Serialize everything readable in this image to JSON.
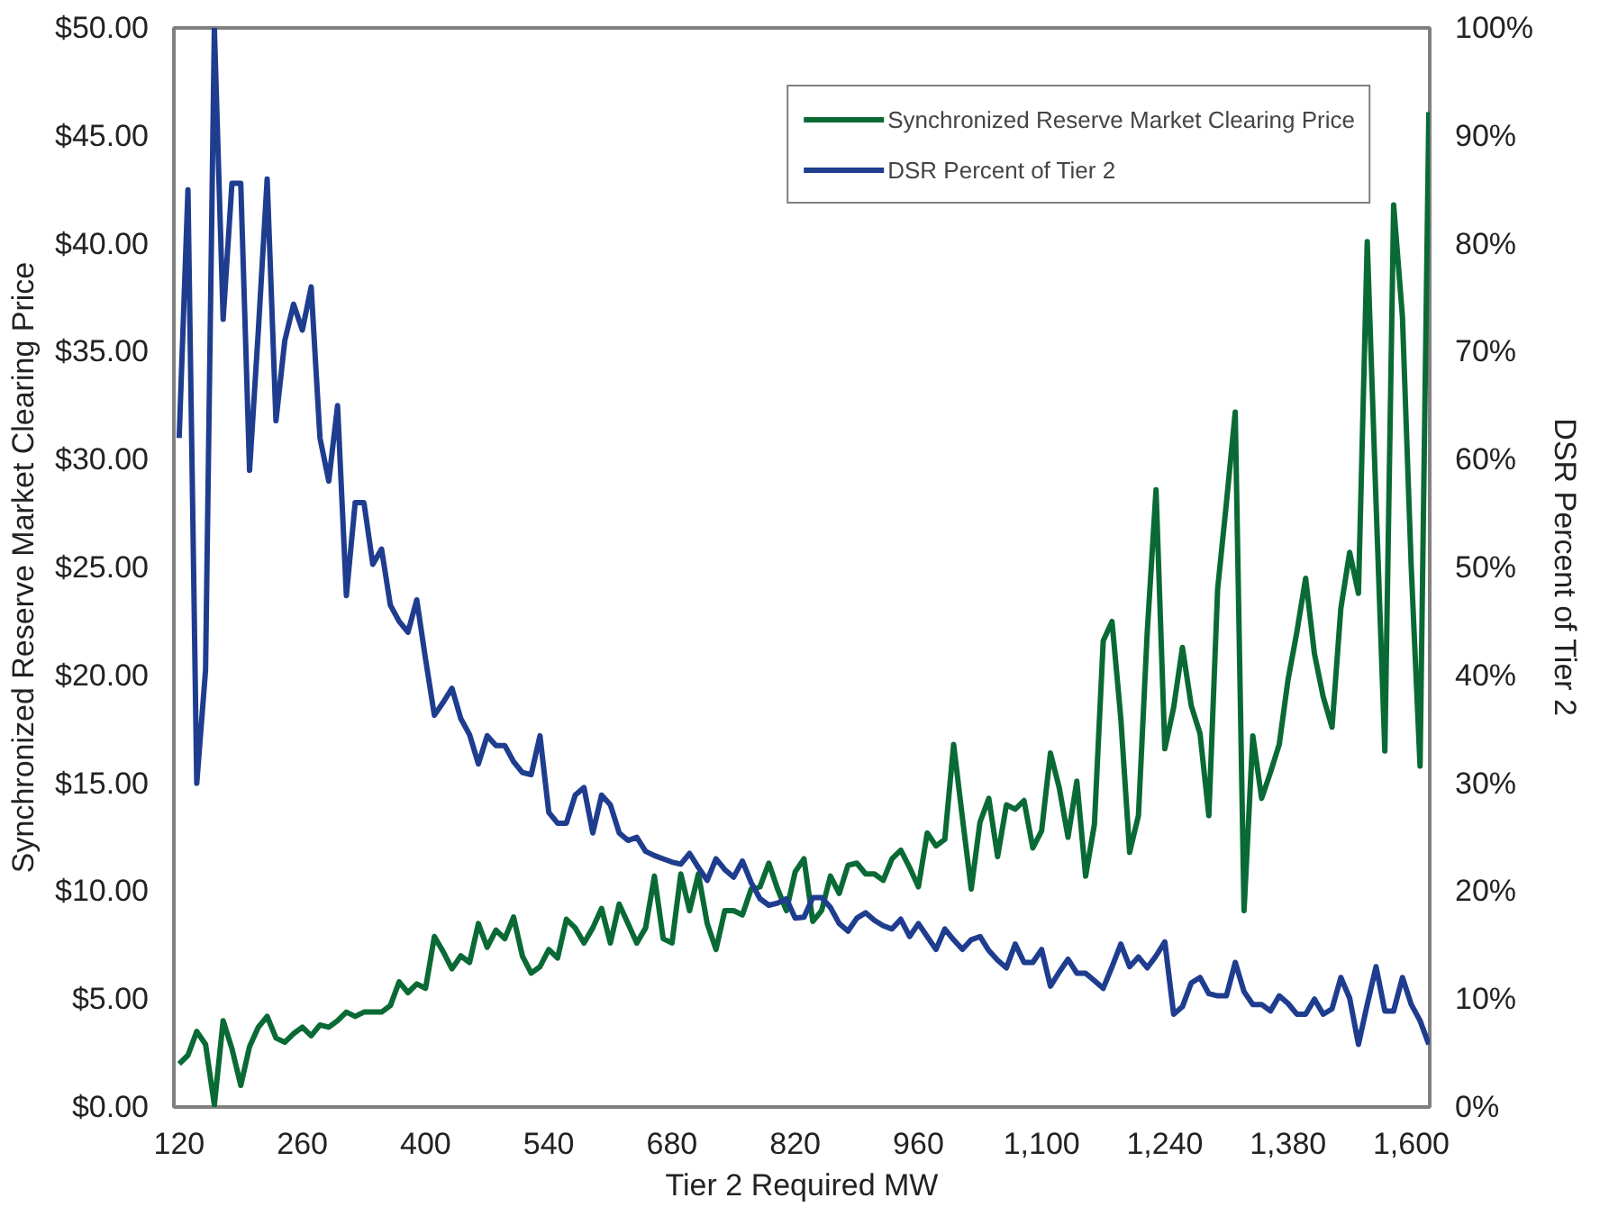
{
  "chart_data": {
    "type": "line",
    "xlabel": "Tier 2 Required MW",
    "ylabel": "Synchronized Reserve Market Clearing Price",
    "y2label": "DSR Percent of Tier 2",
    "categories": [
      "120",
      null,
      null,
      null,
      null,
      null,
      null,
      null,
      null,
      null,
      null,
      null,
      null,
      null,
      "260",
      null,
      null,
      null,
      null,
      null,
      null,
      null,
      null,
      null,
      null,
      null,
      null,
      null,
      "400",
      null,
      null,
      null,
      null,
      null,
      null,
      null,
      null,
      null,
      null,
      null,
      null,
      null,
      "540",
      null,
      null,
      null,
      null,
      null,
      null,
      null,
      null,
      null,
      null,
      null,
      null,
      null,
      "680",
      null,
      null,
      null,
      null,
      null,
      null,
      null,
      null,
      null,
      null,
      null,
      null,
      null,
      "820",
      null,
      null,
      null,
      null,
      null,
      null,
      null,
      null,
      null,
      null,
      null,
      null,
      null,
      "960",
      null,
      null,
      null,
      null,
      null,
      null,
      null,
      null,
      null,
      null,
      null,
      null,
      null,
      "1,100",
      null,
      null,
      null,
      null,
      null,
      null,
      null,
      null,
      null,
      null,
      null,
      null,
      null,
      "1,240",
      null,
      null,
      null,
      null,
      null,
      null,
      null,
      null,
      null,
      null,
      null,
      null,
      null,
      "1,380",
      null,
      null,
      null,
      null,
      null,
      null,
      null,
      null,
      null,
      null,
      null,
      null,
      null,
      "1,600",
      null,
      null
    ],
    "series": [
      {
        "name": "Synchronized Reserve Market Clearing Price",
        "color": "#0a6a35",
        "values": [
          2.0,
          2.4,
          3.5,
          2.9,
          0.1,
          4.0,
          2.7,
          1.0,
          2.8,
          3.7,
          4.2,
          3.2,
          3.0,
          3.4,
          3.7,
          3.3,
          3.8,
          3.7,
          4.0,
          4.4,
          4.2,
          4.4,
          4.4,
          4.4,
          4.7,
          5.8,
          5.3,
          5.7,
          5.5,
          7.9,
          7.2,
          6.4,
          7.0,
          6.7,
          8.5,
          7.4,
          8.2,
          7.8,
          8.8,
          7.0,
          6.2,
          6.5,
          7.3,
          6.9,
          8.7,
          8.3,
          7.6,
          8.3,
          9.2,
          7.6,
          9.4,
          8.5,
          7.6,
          8.3,
          10.7,
          7.8,
          7.6,
          10.8,
          9.1,
          10.8,
          8.5,
          7.3,
          9.1,
          9.1,
          8.9,
          10.1,
          10.2,
          11.3,
          10.1,
          9.1,
          10.9,
          11.5,
          8.6,
          9.1,
          10.7,
          9.9,
          11.2,
          11.3,
          10.8,
          10.8,
          10.5,
          11.5,
          11.9,
          11.1,
          10.2,
          12.7,
          12.1,
          12.4,
          16.8,
          13.4,
          10.1,
          13.2,
          14.3,
          11.6,
          14.0,
          13.8,
          14.2,
          12.0,
          12.8,
          16.4,
          14.8,
          12.5,
          15.1,
          10.7,
          13.1,
          21.6,
          22.5,
          18.0,
          11.8,
          13.5,
          22.0,
          28.6,
          16.6,
          18.5,
          21.3,
          18.6,
          17.3,
          13.5,
          24.0,
          28.0,
          32.2,
          9.1,
          17.2,
          14.3,
          15.5,
          16.8,
          19.8,
          22.0,
          24.5,
          21.0,
          19.0,
          17.6,
          23.1,
          25.7,
          23.8,
          40.1,
          28.0,
          16.5,
          41.8,
          36.6,
          25.0,
          15.8,
          46.1
        ]
      },
      {
        "name": "DSR Percent of Tier 2",
        "color": "#1f3d8f",
        "axis": "y2",
        "values": [
          62,
          85,
          30,
          40.5,
          100,
          73,
          85.6,
          85.6,
          59,
          72,
          86,
          63.6,
          71,
          74.4,
          72,
          76,
          62,
          58,
          65,
          47.4,
          56,
          56,
          50.3,
          51.7,
          46.5,
          45,
          44,
          47,
          41.5,
          36.3,
          37.5,
          38.8,
          36,
          34.5,
          31.8,
          34.4,
          33.5,
          33.5,
          32,
          31,
          30.8,
          34.4,
          27.3,
          26.3,
          26.3,
          28.9,
          29.6,
          25.4,
          28.9,
          28,
          25.4,
          24.7,
          25,
          23.7,
          23.3,
          23,
          22.7,
          22.5,
          23.5,
          22.2,
          21,
          23,
          22,
          21.3,
          22.8,
          20.8,
          19.3,
          18.7,
          18.9,
          19.3,
          17.5,
          17.6,
          19.4,
          19.4,
          18.5,
          17,
          16.3,
          17.5,
          18,
          17.3,
          16.8,
          16.5,
          17.4,
          15.8,
          17,
          15.8,
          14.6,
          16.5,
          15.5,
          14.6,
          15.5,
          15.8,
          14.5,
          13.6,
          12.9,
          15.1,
          13.4,
          13.4,
          14.6,
          11.2,
          12.5,
          13.7,
          12.4,
          12.4,
          11.7,
          11,
          13,
          15.1,
          13,
          13.9,
          12.9,
          14,
          15.3,
          8.6,
          9.3,
          11.5,
          12,
          10.5,
          10.3,
          10.3,
          13.4,
          10.7,
          9.5,
          9.5,
          8.9,
          10.3,
          9.6,
          8.6,
          8.6,
          10,
          8.6,
          9.1,
          12,
          10.1,
          5.8,
          9.5,
          13,
          8.9,
          8.9,
          12,
          9.5,
          8,
          5.8
        ]
      }
    ],
    "ylim": [
      0,
      50
    ],
    "yticks": [
      {
        "value": 0,
        "label": "$0.00"
      },
      {
        "value": 5,
        "label": "$5.00"
      },
      {
        "value": 10,
        "label": "$10.00"
      },
      {
        "value": 15,
        "label": "$15.00"
      },
      {
        "value": 20,
        "label": "$20.00"
      },
      {
        "value": 25,
        "label": "$25.00"
      },
      {
        "value": 30,
        "label": "$30.00"
      },
      {
        "value": 35,
        "label": "$35.00"
      },
      {
        "value": 40,
        "label": "$40.00"
      },
      {
        "value": 45,
        "label": "$45.00"
      },
      {
        "value": 50,
        "label": "$50.00"
      }
    ],
    "y2lim": [
      0,
      100
    ],
    "y2ticks": [
      {
        "value": 0,
        "label": "0%"
      },
      {
        "value": 10,
        "label": "10%"
      },
      {
        "value": 20,
        "label": "20%"
      },
      {
        "value": 30,
        "label": "30%"
      },
      {
        "value": 40,
        "label": "40%"
      },
      {
        "value": 50,
        "label": "50%"
      },
      {
        "value": 60,
        "label": "60%"
      },
      {
        "value": 70,
        "label": "70%"
      },
      {
        "value": 80,
        "label": "80%"
      },
      {
        "value": 90,
        "label": "90%"
      },
      {
        "value": 100,
        "label": "100%"
      }
    ],
    "grid": false,
    "legend": "top right",
    "marker": "none",
    "line_style": "solid"
  }
}
